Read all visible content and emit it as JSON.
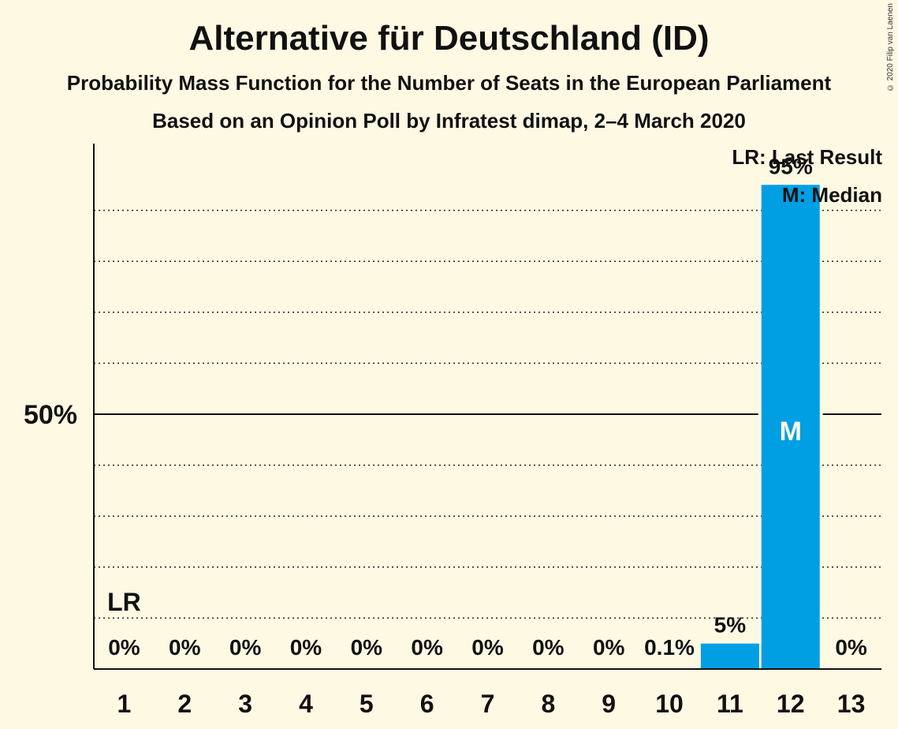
{
  "title": "Alternative für Deutschland (ID)",
  "subtitle": "Probability Mass Function for the Number of Seats in the European Parliament",
  "subtitle2": "Based on an Opinion Poll by Infratest dimap, 2–4 March 2020",
  "copyright": "© 2020 Filip van Laenen",
  "legend": {
    "lr": "LR: Last Result",
    "m": "M: Median"
  },
  "colors": {
    "background": "#FEF9E3",
    "bar": "#009FE3",
    "text": "#111111"
  },
  "chart_data": {
    "type": "bar",
    "categories": [
      "1",
      "2",
      "3",
      "4",
      "5",
      "6",
      "7",
      "8",
      "9",
      "10",
      "11",
      "12",
      "13"
    ],
    "values": [
      0,
      0,
      0,
      0,
      0,
      0,
      0,
      0,
      0,
      0.1,
      5,
      95,
      0
    ],
    "value_labels": [
      "0%",
      "0%",
      "0%",
      "0%",
      "0%",
      "0%",
      "0%",
      "0%",
      "0%",
      "0.1%",
      "5%",
      "95%",
      "0%"
    ],
    "ylim": [
      0,
      100
    ],
    "yticks": [
      {
        "value": 50,
        "label": "50%"
      }
    ],
    "gridlines": [
      10,
      20,
      30,
      40,
      60,
      70,
      80,
      90
    ],
    "last_result": {
      "category": "1",
      "label": "LR"
    },
    "median": {
      "category": "12",
      "label": "M"
    },
    "grid": true,
    "legend_position": "top-right"
  }
}
